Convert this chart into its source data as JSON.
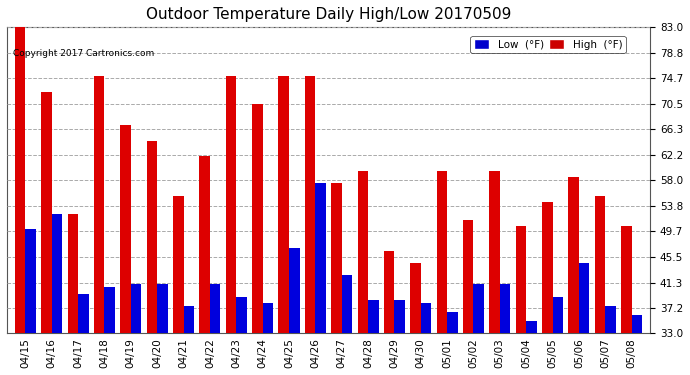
{
  "title": "Outdoor Temperature Daily High/Low 20170509",
  "copyright": "Copyright 2017 Cartronics.com",
  "legend_low_label": "Low  (°F)",
  "legend_high_label": "High  (°F)",
  "legend_low_color": "#0000cc",
  "legend_high_color": "#cc0000",
  "bar_color_low": "#0000dd",
  "bar_color_high": "#dd0000",
  "background_color": "#ffffff",
  "grid_color": "#aaaaaa",
  "ylim": [
    33.0,
    83.0
  ],
  "yticks": [
    33.0,
    37.2,
    41.3,
    45.5,
    49.7,
    53.8,
    58.0,
    62.2,
    66.3,
    70.5,
    74.7,
    78.8,
    83.0
  ],
  "dates": [
    "04/15",
    "04/16",
    "04/17",
    "04/18",
    "04/19",
    "04/20",
    "04/21",
    "04/22",
    "04/23",
    "04/24",
    "04/25",
    "04/26",
    "04/27",
    "04/28",
    "04/29",
    "04/30",
    "05/01",
    "05/02",
    "05/03",
    "05/04",
    "05/05",
    "05/06",
    "05/07",
    "05/08"
  ],
  "highs": [
    83.0,
    72.5,
    52.5,
    75.0,
    67.0,
    64.5,
    55.5,
    62.0,
    75.0,
    70.5,
    75.0,
    75.0,
    57.5,
    59.5,
    46.5,
    44.5,
    59.5,
    51.5,
    59.5,
    50.5,
    54.5,
    58.5,
    55.5,
    50.5
  ],
  "lows": [
    50.0,
    52.5,
    39.5,
    40.5,
    41.0,
    41.0,
    37.5,
    41.0,
    39.0,
    38.0,
    47.0,
    57.5,
    42.5,
    38.5,
    38.5,
    38.0,
    36.5,
    41.0,
    41.0,
    35.0,
    39.0,
    44.5,
    37.5,
    36.0
  ]
}
